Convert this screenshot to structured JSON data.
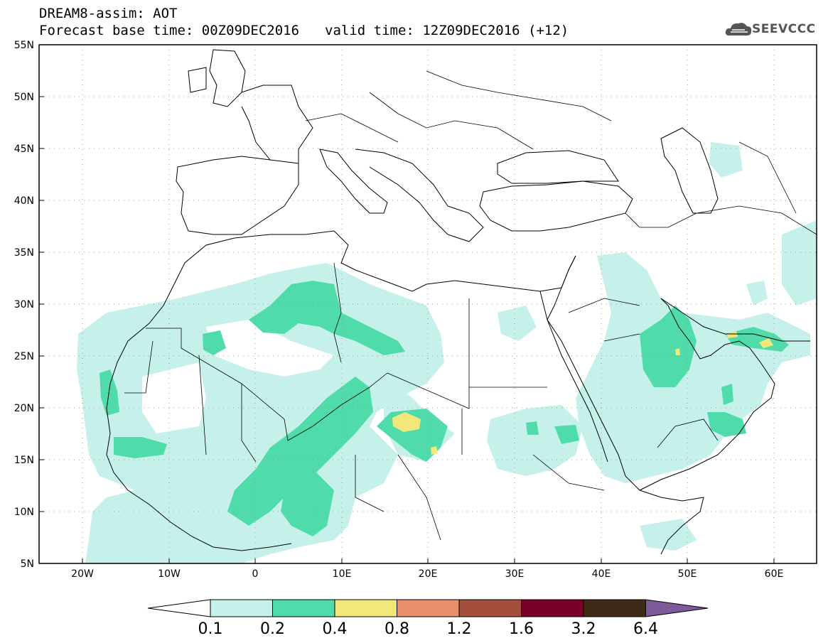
{
  "header": {
    "model_title": "DREAM8-assim: AOT",
    "base_time": "Forecast base time: 00Z09DEC2016",
    "valid_time": "valid time: 12Z09DEC2016 (+12)"
  },
  "logo": {
    "text": "SEEVCCC",
    "icon": "cloud-icon"
  },
  "map": {
    "lon_range": [
      -25,
      65
    ],
    "lat_range": [
      5,
      55
    ],
    "lat_labels": [
      "55N",
      "50N",
      "45N",
      "40N",
      "35N",
      "30N",
      "25N",
      "20N",
      "15N",
      "10N",
      "5N"
    ],
    "lon_labels": [
      "20W",
      "10W",
      "0",
      "10E",
      "20E",
      "30E",
      "40E",
      "50E",
      "60E"
    ],
    "grid": "dotted"
  },
  "colorbar": {
    "levels": [
      "0.1",
      "0.2",
      "0.4",
      "0.8",
      "1.2",
      "1.6",
      "3.2",
      "6.4"
    ],
    "colors": [
      "#ffffff",
      "#c6f0ea",
      "#4fdcaa",
      "#f2e77a",
      "#e79069",
      "#a44f3d",
      "#7a0028",
      "#3e2a17",
      "#7e5a9b"
    ]
  }
}
